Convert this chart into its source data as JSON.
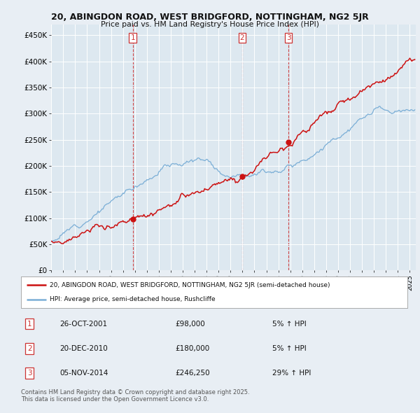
{
  "title_line1": "20, ABINGDON ROAD, WEST BRIDGFORD, NOTTINGHAM, NG2 5JR",
  "title_line2": "Price paid vs. HM Land Registry's House Price Index (HPI)",
  "ylabel_ticks": [
    "£0",
    "£50K",
    "£100K",
    "£150K",
    "£200K",
    "£250K",
    "£300K",
    "£350K",
    "£400K",
    "£450K"
  ],
  "ytick_values": [
    0,
    50000,
    100000,
    150000,
    200000,
    250000,
    300000,
    350000,
    400000,
    450000
  ],
  "ylim": [
    0,
    470000
  ],
  "xlim_start": 1995.0,
  "xlim_end": 2025.5,
  "sale_dates": [
    2001.82,
    2010.97,
    2014.85
  ],
  "sale_prices": [
    98000,
    180000,
    246250
  ],
  "sale_labels": [
    "1",
    "2",
    "3"
  ],
  "vline_color": "#cc3333",
  "hpi_line_color": "#7aaed6",
  "price_line_color": "#cc1111",
  "background_color": "#e8eef4",
  "plot_bg_color": "#dde8f0",
  "legend_bg_color": "#ffffff",
  "legend_label_red": "20, ABINGDON ROAD, WEST BRIDGFORD, NOTTINGHAM, NG2 5JR (semi-detached house)",
  "legend_label_blue": "HPI: Average price, semi-detached house, Rushcliffe",
  "table_entries": [
    {
      "num": "1",
      "date": "26-OCT-2001",
      "price": "£98,000",
      "change": "5% ↑ HPI"
    },
    {
      "num": "2",
      "date": "20-DEC-2010",
      "price": "£180,000",
      "change": "5% ↑ HPI"
    },
    {
      "num": "3",
      "date": "05-NOV-2014",
      "price": "£246,250",
      "change": "29% ↑ HPI"
    }
  ],
  "footer_text": "Contains HM Land Registry data © Crown copyright and database right 2025.\nThis data is licensed under the Open Government Licence v3.0."
}
